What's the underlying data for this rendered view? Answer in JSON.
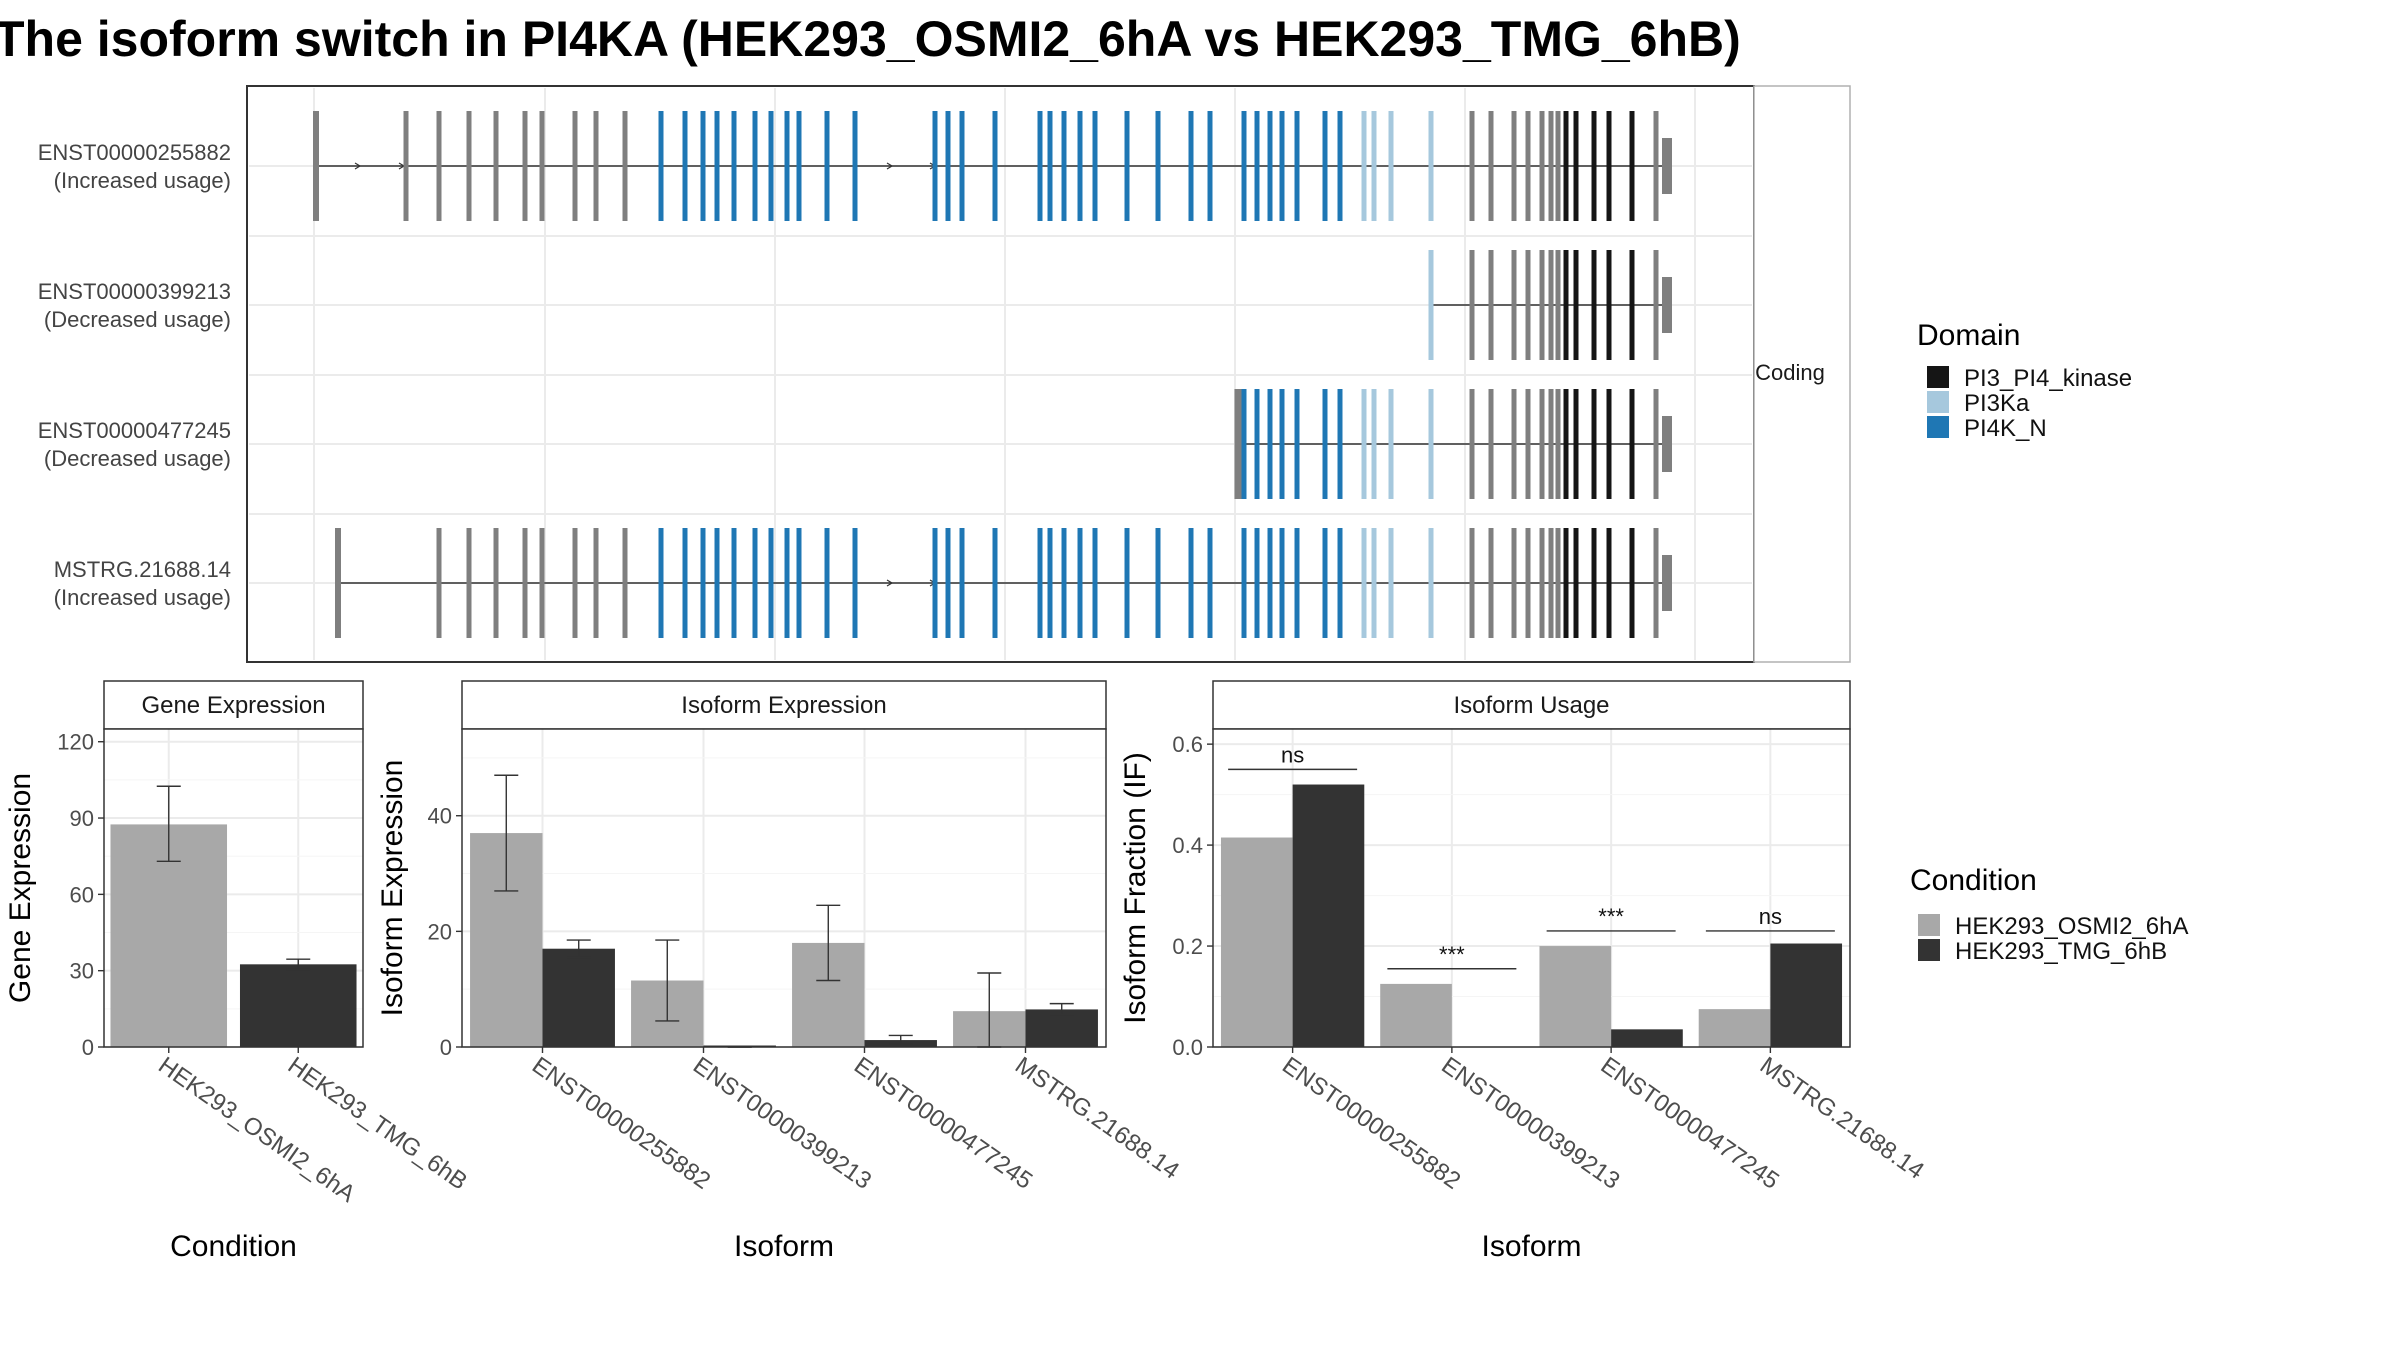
{
  "title": "The isoform switch in PI4KA (HEK293_OSMI2_6hA vs HEK293_TMG_6hB)",
  "structure": {
    "strip_label": "Coding",
    "transcripts": [
      {
        "id": "ENST00000255882",
        "note": "(Increased usage)"
      },
      {
        "id": "ENST00000399213",
        "note": "(Decreased usage)"
      },
      {
        "id": "ENST00000477245",
        "note": "(Decreased usage)"
      },
      {
        "id": "MSTRG.21688.14",
        "note": "(Increased usage)"
      }
    ],
    "domain_legend": {
      "title": "Domain",
      "items": [
        {
          "label": "PI3_PI4_kinase",
          "color": "#151515"
        },
        {
          "label": "PI3Ka",
          "color": "#a6c8dd"
        },
        {
          "label": "PI4K_N",
          "color": "#1f77b4"
        }
      ]
    }
  },
  "condition_legend": {
    "title": "Condition",
    "items": [
      {
        "label": "HEK293_OSMI2_6hA",
        "color": "#a8a8a8"
      },
      {
        "label": "HEK293_TMG_6hB",
        "color": "#333333"
      }
    ]
  },
  "chart_data": [
    {
      "type": "bar",
      "title": "Gene Expression",
      "xlabel": "Condition",
      "ylabel": "Gene Expression",
      "ylim": [
        0,
        125
      ],
      "yticks": [
        0,
        30,
        60,
        90,
        120
      ],
      "categories": [
        "HEK293_OSMI2_6hA",
        "HEK293_TMG_6hB"
      ],
      "values": [
        87.5,
        32.5
      ],
      "error_low": [
        73,
        30.5
      ],
      "error_high": [
        102.5,
        34.5
      ]
    },
    {
      "type": "bar",
      "title": "Isoform Expression",
      "xlabel": "Isoform",
      "ylabel": "Isoform Expression",
      "ylim": [
        0,
        55
      ],
      "yticks": [
        0,
        20,
        40
      ],
      "categories": [
        "ENST00000255882",
        "ENST00000399213",
        "ENST00000477245",
        "MSTRG.21688.14"
      ],
      "series": [
        {
          "name": "HEK293_OSMI2_6hA",
          "values": [
            37,
            11.5,
            18,
            6.2
          ],
          "error_low": [
            27,
            4.5,
            11.5,
            0
          ],
          "error_high": [
            47,
            18.5,
            24.5,
            12.8
          ]
        },
        {
          "name": "HEK293_TMG_6hB",
          "values": [
            17,
            0,
            1.2,
            6.5
          ],
          "error_low": [
            15.5,
            0,
            0.5,
            5.5
          ],
          "error_high": [
            18.5,
            0,
            2,
            7.5
          ]
        }
      ]
    },
    {
      "type": "bar",
      "title": "Isoform Usage",
      "xlabel": "Isoform",
      "ylabel": "Isoform Fraction (IF)",
      "ylim": [
        0,
        0.63
      ],
      "yticks": [
        "0.0",
        "0.2",
        "0.4",
        "0.6"
      ],
      "categories": [
        "ENST00000255882",
        "ENST00000399213",
        "ENST00000477245",
        "MSTRG.21688.14"
      ],
      "series": [
        {
          "name": "HEK293_OSMI2_6hA",
          "values": [
            0.415,
            0.125,
            0.2,
            0.075
          ]
        },
        {
          "name": "HEK293_TMG_6hB",
          "values": [
            0.52,
            0,
            0.035,
            0.205
          ]
        }
      ],
      "significance": [
        "ns",
        "***",
        "***",
        "ns"
      ],
      "significance_y": [
        0.55,
        0.155,
        0.23,
        0.23
      ]
    }
  ]
}
